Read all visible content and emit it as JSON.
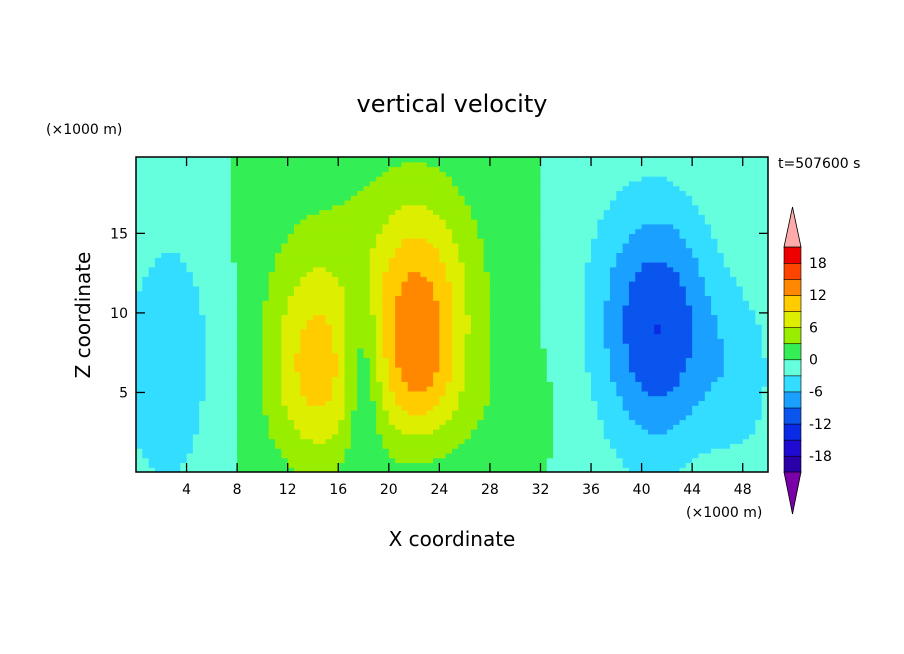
{
  "chart_data": {
    "type": "heatmap",
    "title": "vertical velocity",
    "xlabel": "X coordinate",
    "ylabel": "Z coordinate",
    "x_unit": "(×1000 m)",
    "y_unit": "(×1000 m)",
    "time_label": "t=507600 s",
    "xlim": [
      0,
      50
    ],
    "ylim": [
      0,
      19.8
    ],
    "x_ticks": [
      4,
      8,
      12,
      16,
      20,
      24,
      28,
      32,
      36,
      40,
      44,
      48
    ],
    "y_ticks": [
      5,
      10,
      15
    ],
    "grid": false,
    "colorbar": {
      "levels": [
        -21,
        -18,
        -15,
        -12,
        -9,
        -6,
        -3,
        0,
        3,
        6,
        9,
        12,
        15,
        18,
        21
      ],
      "labels": [
        18,
        12,
        6,
        0,
        -6,
        -12,
        -18
      ],
      "colors": [
        "#7a00a8",
        "#2a00a8",
        "#1e0ad0",
        "#0a2ae6",
        "#0a55ee",
        "#1aa0ff",
        "#33ddff",
        "#66ffdd",
        "#33ee55",
        "#99ee00",
        "#ddee00",
        "#ffcc00",
        "#ff8800",
        "#ff4400",
        "#ee0000",
        "#ffaaaa"
      ],
      "extend": "both"
    },
    "features": [
      {
        "x": 14.2,
        "z": 7.0,
        "w": 8.0,
        "sx": 2.6,
        "sz": 4.5
      },
      {
        "x": 22.3,
        "z": 10.5,
        "w": 10.0,
        "sx": 2.8,
        "sz": 4.5
      },
      {
        "x": 22.5,
        "z": 6.0,
        "w": 4.0,
        "sx": 1.8,
        "sz": 2.5
      },
      {
        "x": 19.5,
        "z": 12.0,
        "w": 3.0,
        "sx": 8.0,
        "sz": 7.0
      },
      {
        "x": 22.0,
        "z": 4.0,
        "w": 2.0,
        "sx": 8.0,
        "sz": 3.0
      },
      {
        "x": 18.0,
        "z": 5.0,
        "w": -5.0,
        "sx": 1.0,
        "sz": 4.0
      },
      {
        "x": 17.5,
        "z": 9.0,
        "w": -2.0,
        "sx": 1.4,
        "sz": 3.0
      },
      {
        "x": 41.5,
        "z": 9.0,
        "w": -11.0,
        "sx": 3.2,
        "sz": 5.5
      },
      {
        "x": 48.0,
        "z": 6.0,
        "w": -4.0,
        "sx": 2.0,
        "sz": 4.0
      },
      {
        "x": 2.0,
        "z": 6.0,
        "w": -4.0,
        "sx": 3.0,
        "sz": 6.0
      },
      {
        "x": 4.0,
        "z": 10.0,
        "w": -2.0,
        "sx": 3.0,
        "sz": 8.0
      },
      {
        "x": 37.0,
        "z": 10.0,
        "w": -2.0,
        "sx": 4.0,
        "sz": 8.0
      }
    ]
  }
}
